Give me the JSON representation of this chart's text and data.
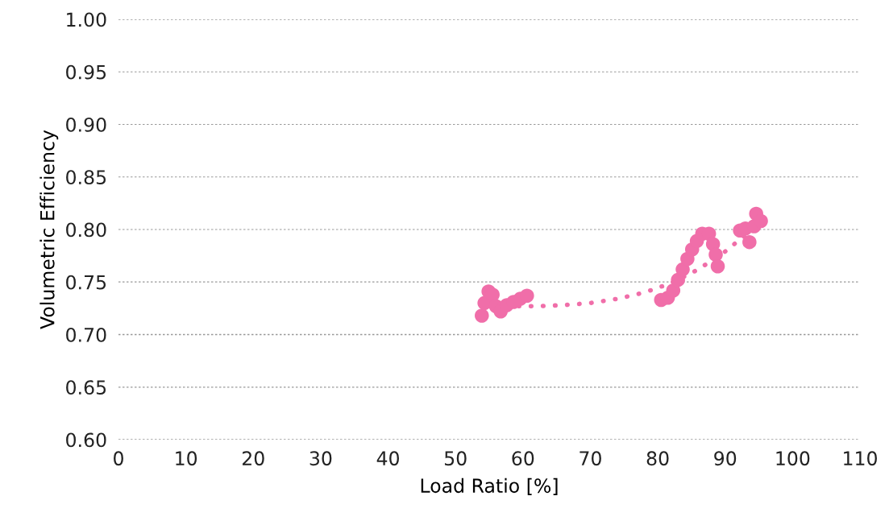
{
  "chart_data": {
    "type": "scatter",
    "xlabel": "Load Ratio [%]",
    "ylabel": "Volumetric Efficiency",
    "xlim": [
      0,
      110
    ],
    "xticks": [
      0,
      10,
      20,
      30,
      40,
      50,
      60,
      70,
      80,
      90,
      100,
      110
    ],
    "ylim": [
      0.6,
      1.0
    ],
    "yticks": [
      {
        "value": 0.6,
        "label": "0.60"
      },
      {
        "value": 0.65,
        "label": "0.65"
      },
      {
        "value": 0.7,
        "label": "0.70"
      },
      {
        "value": 0.75,
        "label": "0.75"
      },
      {
        "value": 0.8,
        "label": "0.80"
      },
      {
        "value": 0.85,
        "label": "0.85"
      },
      {
        "value": 0.9,
        "label": "0.90"
      },
      {
        "value": 0.95,
        "label": "0.95"
      },
      {
        "value": 1.0,
        "label": "1.00"
      }
    ],
    "grid": "y",
    "marker": "circle",
    "series": [
      {
        "color": "#f06ea9",
        "x": [
          53.9,
          54.3,
          54.9,
          55.5,
          56.0,
          56.7,
          57.6,
          58.6,
          59.6,
          60.6,
          80.5,
          81.5,
          82.3,
          83.0,
          83.7,
          84.4,
          85.1,
          85.8,
          86.6,
          87.6,
          88.2,
          88.6,
          88.9,
          92.2,
          93.0,
          93.6,
          94.3,
          94.6,
          95.3
        ],
        "values": [
          0.718,
          0.73,
          0.741,
          0.738,
          0.727,
          0.722,
          0.728,
          0.731,
          0.734,
          0.737,
          0.733,
          0.735,
          0.742,
          0.752,
          0.762,
          0.772,
          0.781,
          0.789,
          0.796,
          0.796,
          0.786,
          0.776,
          0.765,
          0.799,
          0.801,
          0.788,
          0.803,
          0.815,
          0.808
        ]
      },
      {
        "type": "line",
        "line_style": "dotted",
        "marker": "none",
        "color": "#f06ea9",
        "x": [
          54,
          58,
          62,
          66,
          70,
          74,
          78,
          82,
          86,
          90,
          94,
          95
        ],
        "values": [
          0.727,
          0.727,
          0.727,
          0.728,
          0.73,
          0.734,
          0.74,
          0.749,
          0.762,
          0.779,
          0.8,
          0.805
        ]
      }
    ]
  }
}
